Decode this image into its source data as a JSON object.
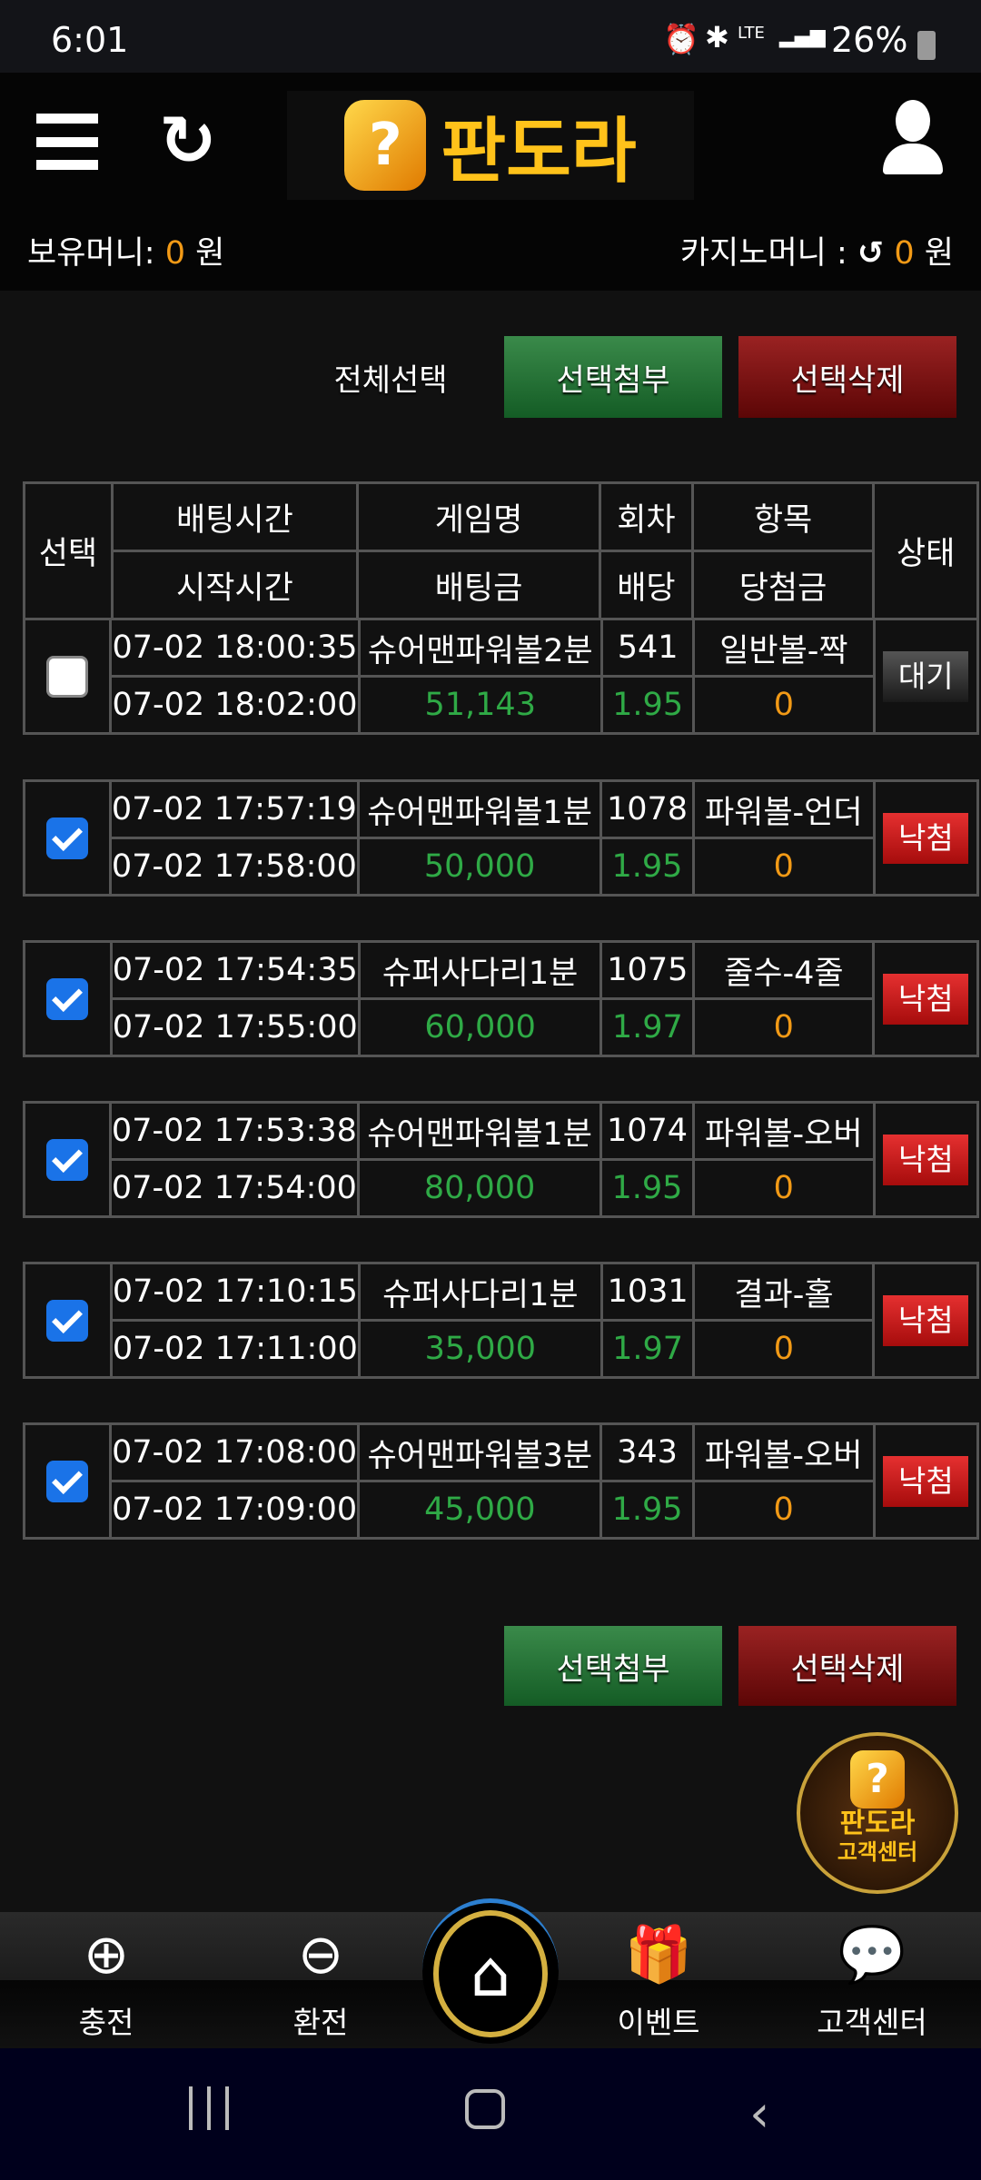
{
  "status": {
    "time": "6:01",
    "network": "LTE",
    "battery": "26%"
  },
  "header": {
    "logo_text": "판도라",
    "balance_label": "보유머니:",
    "balance_value": "0",
    "balance_unit": "원",
    "casino_label": "카지노머니 :",
    "casino_value": "0",
    "casino_unit": "원"
  },
  "actions": {
    "select_all": "전체선택",
    "attach": "선택첨부",
    "delete": "선택삭제"
  },
  "table": {
    "headers": {
      "select": "선택",
      "bet_time": "배팅시간",
      "start_time": "시작시간",
      "game": "게임명",
      "amount": "배팅금",
      "round": "회차",
      "odds": "배당",
      "item": "항목",
      "win": "당첨금",
      "status": "상태"
    },
    "rows": [
      {
        "checked": false,
        "bet_time": "07-02 18:00:35",
        "start_time": "07-02 18:02:00",
        "game": "슈어맨파워볼2분",
        "amount": "51,143",
        "round": "541",
        "odds": "1.95",
        "item": "일반볼-짝",
        "win": "0",
        "status": "대기"
      },
      {
        "checked": true,
        "bet_time": "07-02 17:57:19",
        "start_time": "07-02 17:58:00",
        "game": "슈어맨파워볼1분",
        "amount": "50,000",
        "round": "1078",
        "odds": "1.95",
        "item": "파워볼-언더",
        "win": "0",
        "status": "낙첨"
      },
      {
        "checked": true,
        "bet_time": "07-02 17:54:35",
        "start_time": "07-02 17:55:00",
        "game": "슈퍼사다리1분",
        "amount": "60,000",
        "round": "1075",
        "odds": "1.97",
        "item": "줄수-4줄",
        "win": "0",
        "status": "낙첨"
      },
      {
        "checked": true,
        "bet_time": "07-02 17:53:38",
        "start_time": "07-02 17:54:00",
        "game": "슈어맨파워볼1분",
        "amount": "80,000",
        "round": "1074",
        "odds": "1.95",
        "item": "파워볼-오버",
        "win": "0",
        "status": "낙첨"
      },
      {
        "checked": true,
        "bet_time": "07-02 17:10:15",
        "start_time": "07-02 17:11:00",
        "game": "슈퍼사다리1분",
        "amount": "35,000",
        "round": "1031",
        "odds": "1.97",
        "item": "결과-홀",
        "win": "0",
        "status": "낙첨"
      },
      {
        "checked": true,
        "bet_time": "07-02 17:08:00",
        "start_time": "07-02 17:09:00",
        "game": "슈어맨파워볼3분",
        "amount": "45,000",
        "round": "343",
        "odds": "1.95",
        "item": "파워볼-오버",
        "win": "0",
        "status": "낙첨"
      }
    ]
  },
  "floating": {
    "line1": "판도라",
    "line2": "고객센터"
  },
  "nav": [
    {
      "label": "충전",
      "icon": "piggy-plus-icon"
    },
    {
      "label": "환전",
      "icon": "piggy-minus-icon"
    },
    {
      "label": "",
      "icon": "home-icon"
    },
    {
      "label": "이벤트",
      "icon": "gift-icon"
    },
    {
      "label": "고객센터",
      "icon": "headset-chat-icon"
    }
  ],
  "colors": {
    "green": "#2faa46",
    "orange": "#f29a16",
    "red": "#c01818"
  }
}
